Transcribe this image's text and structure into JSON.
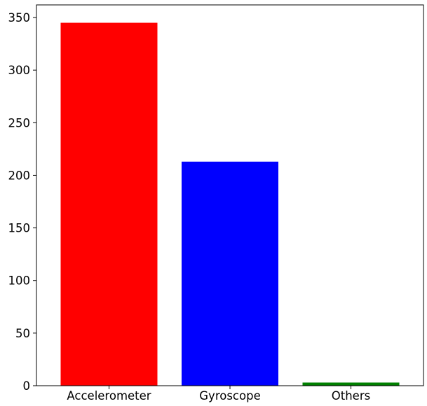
{
  "chart_data": {
    "type": "bar",
    "title": "",
    "xlabel": "",
    "ylabel": "",
    "categories": [
      "Accelerometer",
      "Gyroscope",
      "Others"
    ],
    "values": [
      345,
      213,
      3
    ],
    "colors": [
      "#ff0000",
      "#0000ff",
      "#008000"
    ],
    "ylim": [
      0,
      362
    ],
    "yticks": [
      0,
      50,
      100,
      150,
      200,
      250,
      300,
      350
    ],
    "grid": false,
    "legend": "none"
  }
}
